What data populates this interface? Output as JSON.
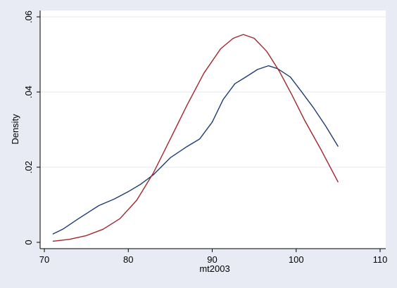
{
  "chart_data": {
    "type": "line",
    "title": "",
    "xlabel": "mt2003",
    "ylabel": "Density",
    "xlim": [
      70,
      110
    ],
    "ylim": [
      0,
      0.06
    ],
    "xticks": [
      70,
      80,
      90,
      100,
      110
    ],
    "xtick_labels": [
      "70",
      "80",
      "90",
      "100",
      "110"
    ],
    "yticks": [
      0,
      0.02,
      0.04,
      0.06
    ],
    "ytick_labels": [
      "0",
      ".02",
      ".04",
      ".06"
    ],
    "grid": true,
    "legend": "none",
    "series": [
      {
        "color": "#1f3b73",
        "x": [
          71,
          72.2,
          74,
          76.5,
          78.3,
          80,
          81.5,
          83,
          85,
          87,
          88.5,
          90,
          91.3,
          92.7,
          94,
          95.4,
          96.7,
          97.8,
          99.3,
          100.5,
          102,
          103.5,
          105
        ],
        "y": [
          0.0022,
          0.0035,
          0.0062,
          0.0098,
          0.0115,
          0.0135,
          0.0155,
          0.018,
          0.0225,
          0.0255,
          0.0275,
          0.032,
          0.038,
          0.0422,
          0.044,
          0.046,
          0.047,
          0.0462,
          0.044,
          0.0405,
          0.036,
          0.031,
          0.0255
        ]
      },
      {
        "color": "#a0262a",
        "x": [
          71,
          73,
          75,
          77,
          79,
          81,
          83,
          85,
          87,
          89,
          91,
          92.5,
          93.7,
          95,
          96.5,
          98,
          99.5,
          101,
          103,
          105
        ],
        "y": [
          0.0003,
          0.0008,
          0.0018,
          0.0035,
          0.0063,
          0.0112,
          0.0185,
          0.0275,
          0.0365,
          0.045,
          0.0515,
          0.0543,
          0.0553,
          0.0543,
          0.0508,
          0.0455,
          0.0392,
          0.0325,
          0.0245,
          0.016
        ]
      }
    ]
  }
}
